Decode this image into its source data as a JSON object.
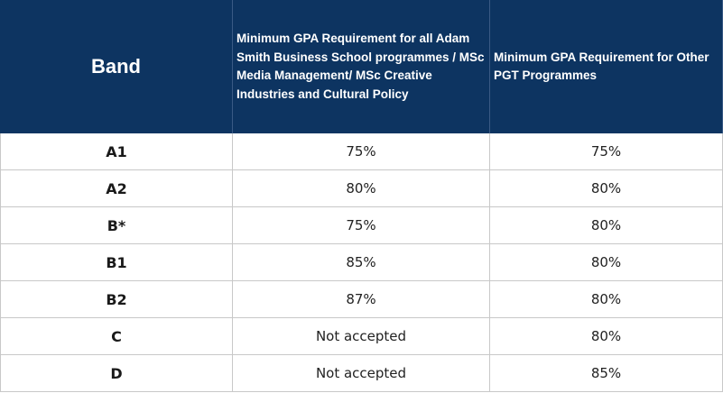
{
  "table": {
    "headers": [
      "Band",
      "Minimum GPA Requirement for all Adam Smith Business School programmes / MSc Media Management/ MSc Creative Industries and Cultural Policy",
      "Minimum GPA Requirement for Other PGT Programmes"
    ],
    "rows": [
      [
        "A1",
        "75%",
        "75%"
      ],
      [
        "A2",
        "80%",
        "80%"
      ],
      [
        "B*",
        "75%",
        "80%"
      ],
      [
        "B1",
        "85%",
        "80%"
      ],
      [
        "B2",
        "87%",
        "80%"
      ],
      [
        "C",
        "Not accepted",
        "80%"
      ],
      [
        "D",
        "Not accepted",
        "85%"
      ]
    ]
  },
  "colors": {
    "header_bg": "#0d3461",
    "header_text": "#ffffff",
    "border": "#c8c8c8"
  }
}
